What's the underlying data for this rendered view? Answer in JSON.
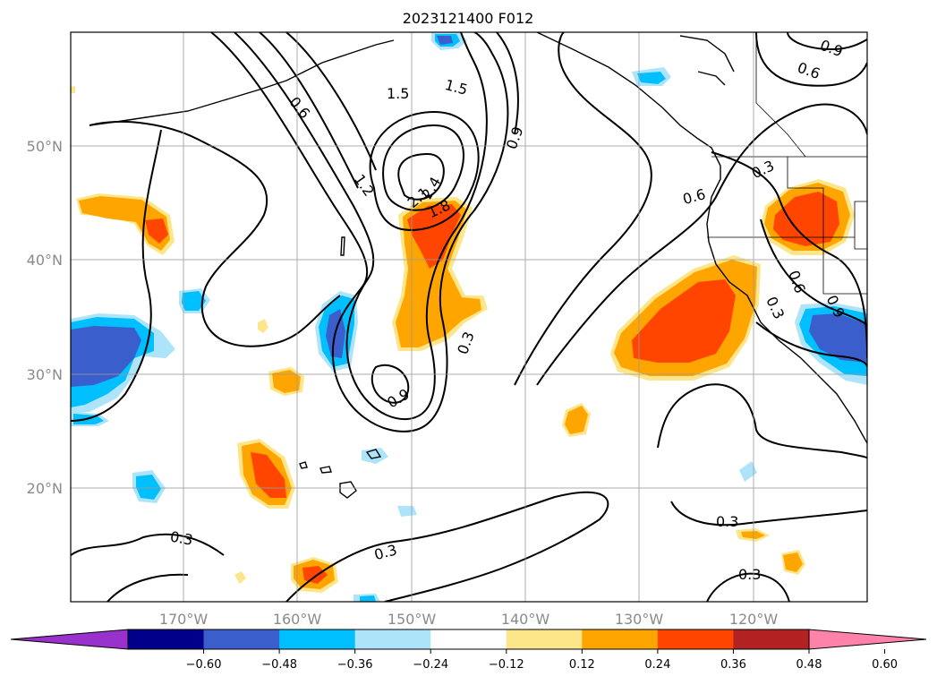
{
  "title": "2023121400 F012",
  "lon_labels": [
    "170°W",
    "160°W",
    "150°W",
    "140°W",
    "130°W",
    "120°W"
  ],
  "lat_labels": [
    "50°N",
    "40°N",
    "30°N",
    "20°N"
  ],
  "colorbar": {
    "tick_labels": [
      "−0.60",
      "−0.48",
      "−0.36",
      "−0.24",
      "−0.12",
      "0.12",
      "0.24",
      "0.36",
      "0.48",
      "0.60"
    ],
    "colors": [
      "#9932cc",
      "#00008b",
      "#3a5fcd",
      "#00bfff",
      "#aee4fa",
      "#ffffff",
      "#fde68a",
      "#ffa500",
      "#ff4500",
      "#b22222",
      "#ff82ab"
    ]
  },
  "contour_labels": [
    "1.5",
    "1.5",
    "0.6",
    "0.9",
    "1.2",
    "2.4",
    "2.1",
    "1.8",
    "0.3",
    "0.9",
    "0.3",
    "0.3",
    "0.3",
    "0.6",
    "0.3",
    "0.6",
    "0.9",
    "0.6",
    "0.3",
    "0.3",
    "0.9"
  ],
  "fill_colors": {
    "light_yellow": "#fde68a",
    "orange": "#ffa500",
    "red_orange": "#ff4500",
    "light_blue": "#aee4fa",
    "cyan": "#00bfff",
    "blue": "#3a5fcd"
  }
}
